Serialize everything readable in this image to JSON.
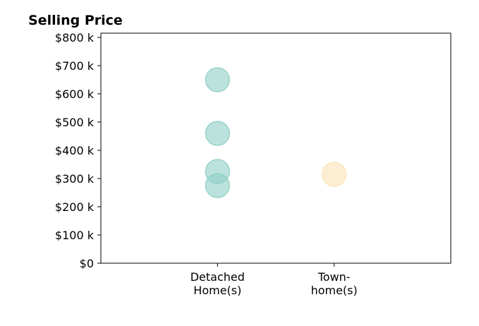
{
  "chart_data": {
    "type": "scatter",
    "title": "Selling Price",
    "xlabel": "",
    "ylabel": "",
    "categories": [
      "Detached\nHome(s)",
      "Town-\nhome(s)"
    ],
    "xlim": [
      -1,
      2
    ],
    "ylim": [
      0,
      815000
    ],
    "y_ticks": [
      {
        "value": 0,
        "label": "$0"
      },
      {
        "value": 100000,
        "label": "$100 k"
      },
      {
        "value": 200000,
        "label": "$200 k"
      },
      {
        "value": 300000,
        "label": "$300 k"
      },
      {
        "value": 400000,
        "label": "$400 k"
      },
      {
        "value": 500000,
        "label": "$500 k"
      },
      {
        "value": 600000,
        "label": "$600 k"
      },
      {
        "value": 700000,
        "label": "$700 k"
      },
      {
        "value": 800000,
        "label": "$800 k"
      }
    ],
    "series": [
      {
        "category_index": 0,
        "color": "#8ecfc4",
        "values": [
          650000,
          460000,
          325000,
          275000
        ]
      },
      {
        "category_index": 1,
        "color": "#fbe3b6",
        "values": [
          315000
        ]
      }
    ],
    "grid": false,
    "legend": "none"
  }
}
